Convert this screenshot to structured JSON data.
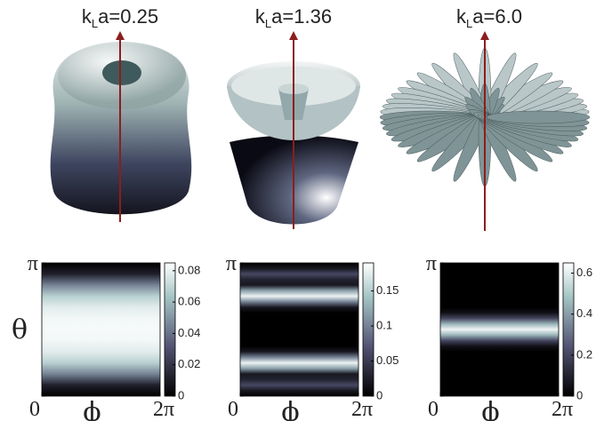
{
  "chart_data": [
    {
      "type": "heatmap",
      "title": "kLa=0.25",
      "xlabel": "ϕ",
      "ylabel": "θ",
      "xlim": [
        0,
        6.28318
      ],
      "xticks": [
        0,
        {
          "value": 6.28318,
          "label": "2π"
        }
      ],
      "ylim": [
        0,
        3.14159
      ],
      "yticks": [
        0,
        {
          "value": 3.14159,
          "label": "π"
        }
      ],
      "y": [
        0,
        0.2618,
        0.5236,
        0.7854,
        1.0472,
        1.309,
        1.5708,
        1.8326,
        2.0944,
        2.3562,
        2.618,
        2.8798,
        3.14159
      ],
      "values": [
        0,
        0.012,
        0.045,
        0.068,
        0.078,
        0.082,
        0.083,
        0.082,
        0.078,
        0.068,
        0.045,
        0.012,
        0
      ],
      "zlim": [
        0,
        0.085
      ],
      "zticks": [
        0,
        0.02,
        0.04,
        0.06,
        0.08
      ]
    },
    {
      "type": "heatmap",
      "title": "kLa=1.36",
      "xlabel": "ϕ",
      "xlim": [
        0,
        6.28318
      ],
      "xticks": [
        0,
        {
          "value": 6.28318,
          "label": "2π"
        }
      ],
      "ylim": [
        0,
        3.14159
      ],
      "yticks": [
        0,
        {
          "value": 3.14159,
          "label": "π"
        }
      ],
      "y": [
        0,
        0.1309,
        0.2618,
        0.3927,
        0.5236,
        0.6545,
        0.7854,
        0.9163,
        1.0472,
        1.1781,
        1.309,
        1.4399,
        1.5708,
        1.7017,
        1.8326,
        1.9635,
        2.0944,
        2.2253,
        2.3562,
        2.4871,
        2.618,
        2.7489,
        2.8798,
        3.0107,
        3.14159
      ],
      "values": [
        0,
        0.02,
        0.06,
        0.03,
        0.02,
        0.12,
        0.18,
        0.1,
        0.02,
        0,
        0,
        0,
        0,
        0,
        0,
        0,
        0.02,
        0.1,
        0.18,
        0.12,
        0.02,
        0.03,
        0.06,
        0.02,
        0
      ],
      "zlim": [
        0,
        0.19
      ],
      "zticks": [
        0,
        0.05,
        0.1,
        0.15
      ]
    },
    {
      "type": "heatmap",
      "title": "kLa=6.0",
      "xlabel": "ϕ",
      "xlim": [
        0,
        6.28318
      ],
      "xticks": [
        0,
        {
          "value": 6.28318,
          "label": "2π"
        }
      ],
      "ylim": [
        0,
        3.14159
      ],
      "yticks": [
        0,
        {
          "value": 3.14159,
          "label": "π"
        }
      ],
      "y": [
        0,
        0.1309,
        0.2618,
        0.3927,
        0.5236,
        0.6545,
        0.7854,
        0.9163,
        1.0472,
        1.1781,
        1.309,
        1.4399,
        1.5708,
        1.7017,
        1.8326,
        1.9635,
        2.0944,
        2.2253,
        2.3562,
        2.4871,
        2.618,
        2.7489,
        2.8798,
        3.0107,
        3.14159
      ],
      "values": [
        0,
        0,
        0,
        0,
        0,
        0,
        0,
        0,
        0,
        0.05,
        0.2,
        0.45,
        0.62,
        0.45,
        0.2,
        0.05,
        0,
        0,
        0,
        0,
        0,
        0,
        0,
        0,
        0
      ],
      "zlim": [
        0,
        0.65
      ],
      "zticks": [
        0,
        0.2,
        0.4,
        0.6
      ]
    }
  ]
}
